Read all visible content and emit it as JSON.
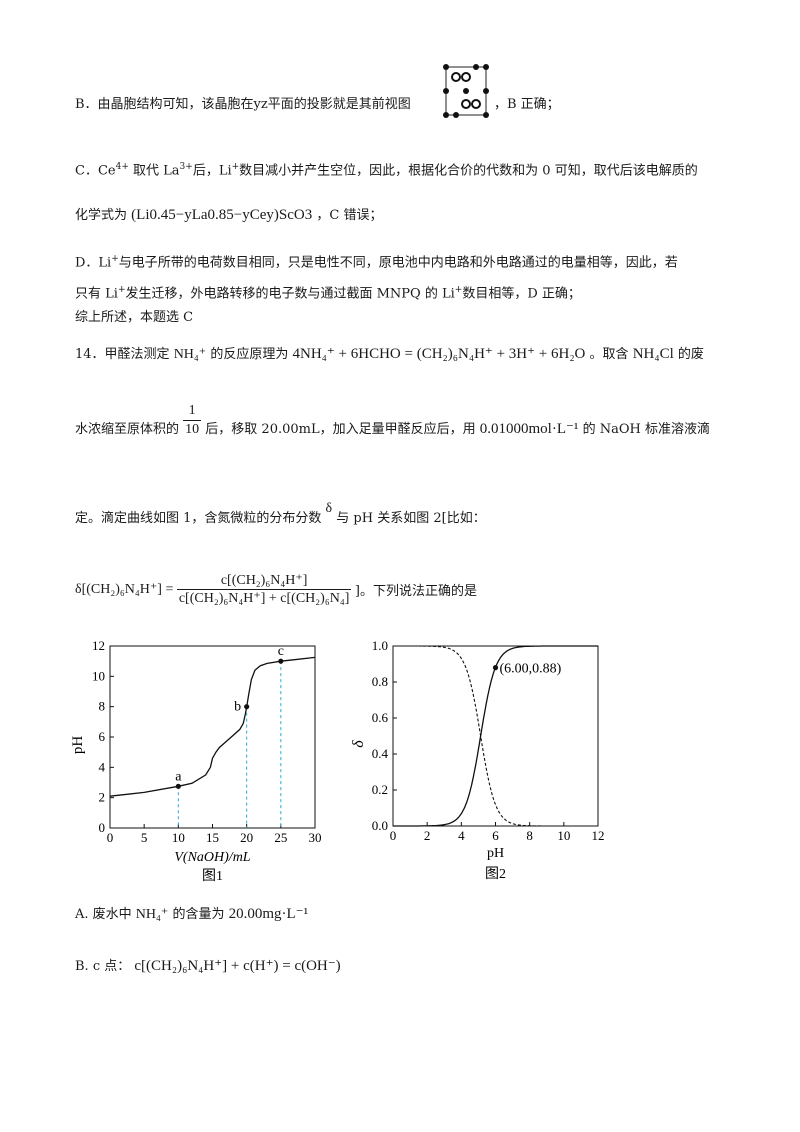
{
  "lineB": {
    "text": "B．由晶胞结构可知，该晶胞在yz平面的投影就是其前视图",
    "suffix": "，B 正确；"
  },
  "lineC": {
    "p1": "C．Ce",
    "sup1": "4+",
    "p2": " 取代 La",
    "sup2": "3+",
    "p3": "后，Li",
    "sup3": "+",
    "p4": "数目减小并产生空位，因此，根据化合价的代数和为 0 可知，取代后该电解质的"
  },
  "lineC2": {
    "prefix": "化学式为",
    "formula": "(Li0.45−yLa0.85−yCey)ScO3",
    "suffix": "，C 错误；"
  },
  "lineD": {
    "p1": "D．Li",
    "sup1": "+",
    "p2": "与电子所带的电荷数目相同，只是电性不同，原电池中内电路和外电路通过的电量相等，因此，若",
    "q1": "只有 Li",
    "sup2": "+",
    "q2": "发生迁移，外电路转移的电子数与通过截面 MNPQ 的 Li",
    "sup3": "+",
    "q3": "数目相等，D 正确；"
  },
  "summary": "综上所述，本题选 C",
  "q14": {
    "p1": "14．甲醛法测定",
    "nh4": "NH₄⁺",
    "p2": "的反应原理为",
    "equation": "4NH₄⁺ + 6HCHO = (CH₂)₆N₄H⁺ + 3H⁺ + 6H₂O",
    "p3": "。取含",
    "nh4cl": "NH₄Cl",
    "p4": "的废",
    "p5": "水浓缩至原体积的",
    "frac_num": "1",
    "frac_den": "10",
    "p6": "后，移取 20.00mL，加入足量甲醛反应后，用",
    "conc": "0.01000mol·L⁻¹",
    "p7": "的 NaOH 标准溶液滴",
    "p8": "定。滴定曲线如图 1，含氮微粒的分布分数",
    "delta": "δ",
    "p9": "与 pH 关系如图 2[比如：",
    "def_lhs": "δ[(CH₂)₆N₄H⁺] =",
    "def_num": "c[(CH₂)₆N₄H⁺]",
    "def_den": "c[(CH₂)₆N₄H⁺] + c[(CH₂)₆N₄]",
    "p10": "]。下列说法正确的是"
  },
  "optionA": {
    "p1": "A. 废水中",
    "nh4": "NH₄⁺",
    "p2": "的含量为",
    "val": "20.00mg·L⁻¹"
  },
  "optionB": {
    "p1": "B. c 点：",
    "expr": "c[(CH₂)₆N₄H⁺] + c(H⁺) = c(OH⁻)"
  },
  "chart_data": [
    {
      "type": "line",
      "title": "",
      "caption": "图1",
      "xlabel": "V(NaOH)/mL",
      "ylabel": "pH",
      "xlim": [
        0,
        30
      ],
      "ylim": [
        0,
        12
      ],
      "xticks": [
        "0",
        "5",
        "10",
        "15",
        "20",
        "25",
        "30"
      ],
      "yticks": [
        "0",
        "2",
        "4",
        "6",
        "8",
        "10",
        "12"
      ],
      "series": [
        {
          "x": [
            0,
            5,
            10,
            12,
            14,
            14.7,
            15,
            15.5,
            16,
            17,
            18,
            19,
            19.5,
            19.8,
            20,
            20.3,
            20.7,
            21.2,
            22,
            23,
            25,
            27,
            30
          ],
          "y": [
            2.1,
            2.35,
            2.75,
            2.95,
            3.5,
            4.0,
            4.6,
            5.0,
            5.3,
            5.7,
            6.1,
            6.5,
            6.9,
            7.5,
            8.0,
            8.8,
            9.8,
            10.4,
            10.7,
            10.85,
            11.0,
            11.1,
            11.25
          ]
        }
      ],
      "points": [
        {
          "label": "a",
          "x": 10,
          "y": 2.75
        },
        {
          "label": "b",
          "x": 20,
          "y": 8.0
        },
        {
          "label": "c",
          "x": 25,
          "y": 11.0
        }
      ],
      "guides_x": [
        10,
        20,
        25
      ]
    },
    {
      "type": "line",
      "title": "",
      "caption": "图2",
      "xlabel": "pH",
      "ylabel": "δ",
      "xlim": [
        0,
        12
      ],
      "ylim": [
        0,
        1.0
      ],
      "xticks": [
        "0",
        "2",
        "4",
        "6",
        "8",
        "10",
        "12"
      ],
      "yticks": [
        "0.0",
        "0.2",
        "0.4",
        "0.6",
        "0.8",
        "1.0"
      ],
      "pKa": 5.13,
      "annotation": {
        "label": "(6.00,0.88)",
        "x": 6.0,
        "y": 0.88
      }
    }
  ]
}
